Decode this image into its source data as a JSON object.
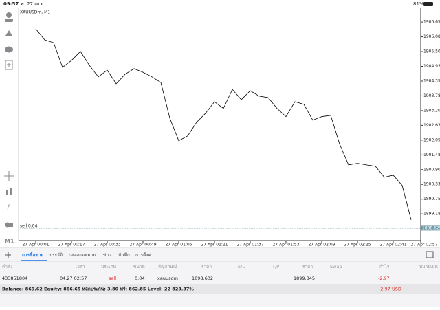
{
  "status_bar": {
    "time": "09:57",
    "date": "พ. 27 เม.ย.",
    "battery": "81%"
  },
  "toolbar": {
    "timeframe": "M1"
  },
  "chart_data": {
    "type": "line",
    "title": "XAUUSDm, M1",
    "x": [
      "27 Apr 00:01",
      null,
      null,
      null,
      "27 Apr 00:17",
      null,
      null,
      null,
      "27 Apr 00:33",
      null,
      null,
      null,
      "27 Apr 00:49",
      null,
      null,
      null,
      "27 Apr 01:05",
      null,
      null,
      null,
      "27 Apr 01:21",
      null,
      null,
      null,
      "27 Apr 01:37",
      null,
      null,
      null,
      "27 Apr 01:53",
      null,
      null,
      null,
      "27 Apr 02:09",
      null,
      null,
      null,
      "27 Apr 02:25",
      null,
      null,
      null,
      "27 Apr 02:41",
      null,
      null,
      null,
      "27 Apr 02:57"
    ],
    "values": [
      1906.39,
      1905.96,
      1905.85,
      1904.89,
      1905.16,
      1905.51,
      1904.97,
      1904.52,
      1904.78,
      1904.25,
      1904.62,
      1904.84,
      1904.7,
      1904.52,
      1904.3,
      1902.91,
      1902.03,
      1902.22,
      1902.75,
      1903.1,
      1903.55,
      1903.29,
      1904.03,
      1903.63,
      1903.98,
      1903.77,
      1903.71,
      1903.29,
      1902.97,
      1903.55,
      1903.45,
      1902.83,
      1902.97,
      1903.02,
      1901.9,
      1901.09,
      1901.15,
      1901.09,
      1901.04,
      1900.61,
      1900.69,
      1900.29,
      1898.95,
      null,
      null
    ],
    "color": "#000000",
    "ylim": [
      1898.14,
      1907.14
    ],
    "yticks": [
      1906.655,
      {
        "value": 1906.08,
        "label": "1906.080"
      },
      1905.505,
      {
        "value": 1904.93,
        "label": "1904.930"
      },
      1904.355,
      {
        "value": 1903.78,
        "label": "1903.780"
      },
      1903.205,
      {
        "value": 1902.63,
        "label": "1902.630"
      },
      1902.055,
      {
        "value": 1901.48,
        "label": "1901.480"
      },
      1900.905,
      {
        "value": 1900.33,
        "label": "1900.330"
      },
      1899.755,
      {
        "value": 1899.18,
        "label": "1899.180"
      }
    ],
    "order_line": {
      "label": "sell 0.04",
      "value": 1898.625,
      "color": "#6e9aa8"
    }
  },
  "tabs": [
    "การซื้อขาย",
    "ประวัติ",
    "กล่องจดหมาย",
    "ข่าว",
    "บันทึก",
    "การตั้งค่า"
  ],
  "table": {
    "headers": [
      "คำสั่ง",
      "เวลา",
      "ประเภท",
      "ขนาด",
      "สัญลักษณ์",
      "ราคา",
      "S/L",
      "T/P",
      "ราคา",
      "Swap",
      "กำไร",
      "หมายเหตุ"
    ],
    "row": {
      "order": 433851804,
      "time": "04.27 02:57",
      "type": "sell",
      "volume": 0.04,
      "symbol": "xauusdm",
      "price": 1898.602,
      "current_price": 1899.345,
      "profit": -2.97
    }
  },
  "footer": {
    "summary": "Balance: 869.62 Equity: 866.65 หลักประกัน: 3.80 ฟรี: 862.85 Level: 22 823.37%",
    "profit": -2.97,
    "currency": "USD"
  }
}
